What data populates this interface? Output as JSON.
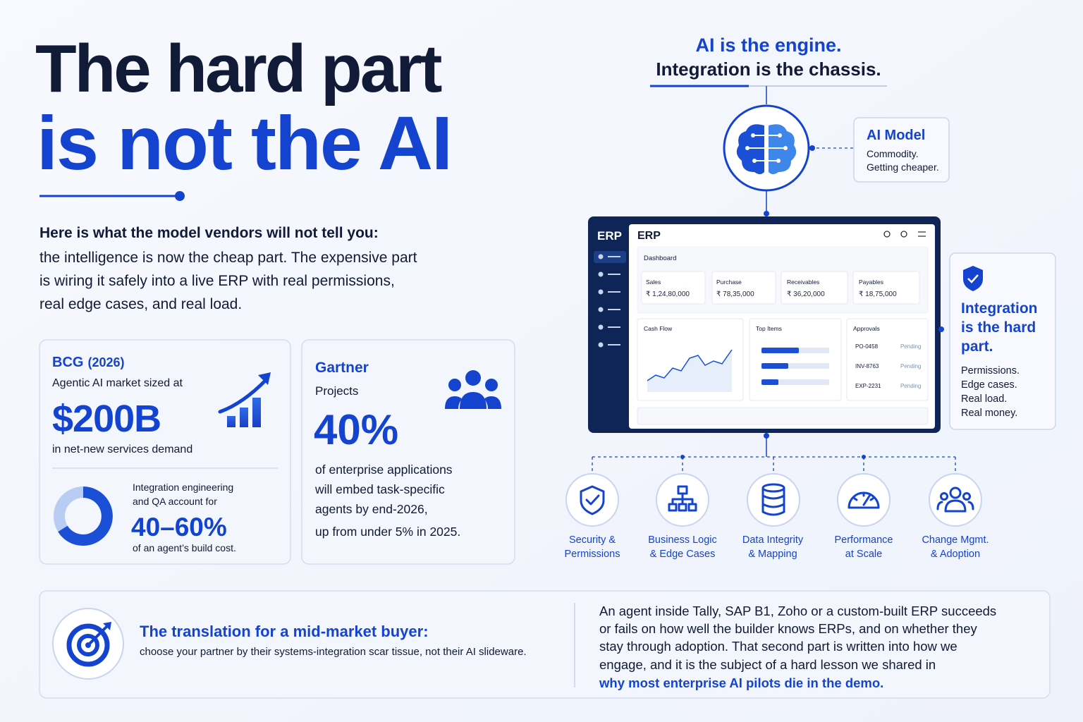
{
  "headline": {
    "line1": "The hard part",
    "line2": "is not the AI"
  },
  "intro": {
    "lead": "Here is what the model vendors will not tell you:",
    "lines": [
      "the intelligence is now the cheap part. The expensive part",
      "is wiring it safely into a live ERP with real permissions,",
      "real edge cases, and real load."
    ]
  },
  "bcg": {
    "source": "BCG",
    "year": "(2026)",
    "label": "Agentic AI market sized at",
    "value": "$200B",
    "sub": "in net-new services demand",
    "share_lines": [
      "Integration engineering",
      "and QA account for"
    ],
    "share": "40–60%",
    "share_sub": "of an agent’s build cost."
  },
  "gartner": {
    "source": "Gartner",
    "label": "Projects",
    "value": "40%",
    "lines": [
      "of enterprise applications",
      "will embed task-specific",
      "agents by end-2026,"
    ],
    "tail": "up from under 5% in 2025."
  },
  "diagram": {
    "tagline1": "AI is the engine.",
    "tagline2": "Integration is the chassis.",
    "ai_model": {
      "title": "AI Model",
      "lines": [
        "Commodity.",
        "Getting cheaper."
      ]
    },
    "erp": {
      "sidebar_title": "ERP",
      "title": "ERP",
      "dashboard": "Dashboard",
      "kpis": [
        {
          "label": "Sales",
          "value": "₹ 1,24,80,000"
        },
        {
          "label": "Purchase",
          "value": "₹ 78,35,000"
        },
        {
          "label": "Receivables",
          "value": "₹ 36,20,000"
        },
        {
          "label": "Payables",
          "value": "₹ 18,75,000"
        }
      ],
      "cash_flow": "Cash Flow",
      "top_items": "Top Items",
      "approvals": "Approvals",
      "approval_items": [
        {
          "id": "PO-0458",
          "status": "Pending"
        },
        {
          "id": "INV-8763",
          "status": "Pending"
        },
        {
          "id": "EXP-2231",
          "status": "Pending"
        }
      ]
    },
    "integration": {
      "title": [
        "Integration",
        "is the hard",
        "part."
      ],
      "lines": [
        "Permissions.",
        "Edge cases.",
        "Real load.",
        "Real money."
      ]
    },
    "pillars": [
      {
        "line1": "Security &",
        "line2": "Permissions"
      },
      {
        "line1": "Business Logic",
        "line2": "& Edge Cases"
      },
      {
        "line1": "Data Integrity",
        "line2": "& Mapping"
      },
      {
        "line1": "Performance",
        "line2": "at Scale"
      },
      {
        "line1": "Change Mgmt.",
        "line2": "& Adoption"
      }
    ]
  },
  "footer": {
    "title": "The translation for a mid-market buyer:",
    "sub": "choose your partner by their systems-integration scar tissue, not their AI slideware.",
    "lines": [
      "An agent inside Tally, SAP B1, Zoho or a custom-built ERP succeeds",
      "or fails on how well the builder knows ERPs, and on whether they",
      "stay through adoption. That second part is written into how we",
      "engage, and it is the subject of a hard lesson we shared in"
    ],
    "link": "why most enterprise AI pilots die in the demo."
  }
}
